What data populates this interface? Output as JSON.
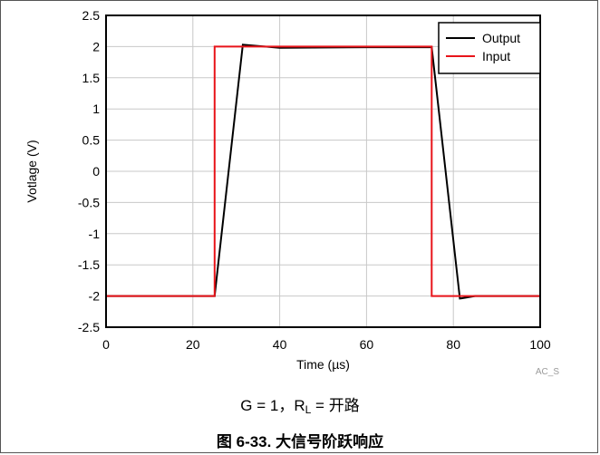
{
  "chart_data": {
    "type": "line",
    "xlabel": "Time (µs)",
    "ylabel": "Votlage (V)",
    "xlim": [
      0,
      100
    ],
    "ylim": [
      -2.5,
      2.5
    ],
    "xticks": [
      0,
      20,
      40,
      60,
      80,
      100
    ],
    "yticks": [
      2.5,
      2,
      1.5,
      1,
      0.5,
      0,
      -0.5,
      -1,
      -1.5,
      -2,
      -2.5
    ],
    "ytick_labels": [
      "2.5",
      "2",
      "1.5",
      "1",
      "0.5",
      "0",
      "-0.5",
      "-1",
      "-1.5",
      "-2",
      "-2.5"
    ],
    "grid": true,
    "legend_position": "top-right",
    "watermark": "AC_S",
    "series": [
      {
        "name": "Output",
        "color": "#000000",
        "x": [
          0,
          25,
          31.5,
          40,
          60,
          75,
          81.5,
          85,
          100
        ],
        "y": [
          -2,
          -2,
          2.03,
          1.98,
          1.99,
          1.99,
          -2.04,
          -2.0,
          -2.0
        ]
      },
      {
        "name": "Input",
        "color": "#e8141a",
        "x": [
          0,
          25,
          25,
          75,
          75,
          100
        ],
        "y": [
          -2,
          -2,
          2,
          2,
          -2,
          -2
        ]
      }
    ]
  },
  "caption": {
    "condition_prefix": "G = 1，R",
    "condition_sub": "L",
    "condition_suffix": " = 开路",
    "figure_title": "图 6-33. 大信号阶跃响应"
  }
}
